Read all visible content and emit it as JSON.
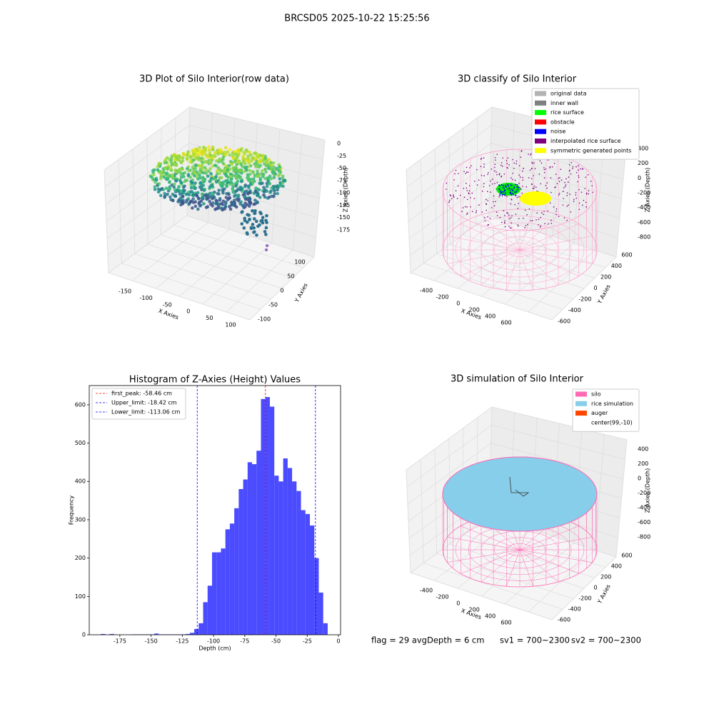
{
  "suptitle": "BRCSD05 2025-10-22 15:25:56",
  "chart_data": [
    {
      "type": "scatter3d",
      "title": "3D Plot of Silo Interior(row data)",
      "xlabel": "X Axies",
      "ylabel": "Y Axies",
      "zlabel": "Z Axies (Depth)",
      "xlim": [
        -190,
        120
      ],
      "ylim": [
        -110,
        120
      ],
      "zlim": [
        -190,
        5
      ],
      "xticks": [
        -150,
        -100,
        -50,
        0,
        50,
        100
      ],
      "yticks": [
        -100,
        -50,
        0,
        50,
        100
      ],
      "zticks": [
        0,
        -25,
        -50,
        -75,
        -100,
        -125,
        -150,
        -175
      ]
    },
    {
      "type": "classify3d",
      "title": "3D classify of Silo Interior",
      "xlabel": "X Axies",
      "ylabel": "Y Axies",
      "zlabel": "Z Axies (Depth)",
      "xlim": [
        -500,
        700
      ],
      "ylim": [
        -700,
        700
      ],
      "zlim": [
        -900,
        450
      ],
      "xticks": [
        -400,
        -200,
        0,
        200,
        400,
        600
      ],
      "yticks": [
        -600,
        -400,
        -200,
        0,
        200,
        400,
        600
      ],
      "zticks": [
        400,
        200,
        0,
        -200,
        -400,
        -600,
        -800
      ],
      "legend": [
        {
          "name": "original data",
          "color": "#b3b3b3"
        },
        {
          "name": "inner wall",
          "color": "#808080"
        },
        {
          "name": "rice surface",
          "color": "#00ff00"
        },
        {
          "name": "obstacle",
          "color": "#ff0000"
        },
        {
          "name": "noise",
          "color": "#0000ff"
        },
        {
          "name": "interpolated rice surface",
          "color": "#800080"
        },
        {
          "name": "symmetric generated points",
          "color": "#ffff00"
        }
      ]
    },
    {
      "type": "histogram",
      "title": "Histogram of Z-Axies (Height) Values",
      "xlabel": "Depth (cm)",
      "ylabel": "Frequency",
      "color": "#4b4bff",
      "bins": [
        -190.2,
        -186.64,
        -183.08,
        -179.52,
        -175.96,
        -172.4,
        -168.84,
        -165.28,
        -161.72,
        -158.16,
        -154.6,
        -151.04,
        -147.48,
        -143.92,
        -140.36,
        -136.8,
        -133.24,
        -129.68,
        -126.12,
        -122.56,
        -119.0,
        -115.44,
        -111.88,
        -108.32,
        -104.76,
        -101.2,
        -97.64,
        -94.08,
        -90.52,
        -86.96,
        -83.4,
        -79.84,
        -76.28,
        -72.72,
        -69.16,
        -65.6,
        -62.04,
        -58.48,
        -54.92,
        -51.36,
        -47.8,
        -44.24,
        -40.68,
        -37.12,
        -33.56,
        -30.0,
        -26.44,
        -22.88,
        -19.32,
        -15.76,
        -12.2,
        -8.64
      ],
      "values": [
        2,
        0,
        2,
        0,
        0,
        0,
        0,
        1,
        1,
        1,
        1,
        1,
        3,
        1,
        1,
        1,
        1,
        1,
        1,
        2,
        5,
        15,
        30,
        85,
        128,
        215,
        215,
        225,
        275,
        290,
        330,
        380,
        405,
        450,
        445,
        480,
        615,
        620,
        595,
        415,
        400,
        460,
        435,
        400,
        375,
        325,
        315,
        285,
        200,
        110,
        30
      ],
      "xlim": [
        -199.5,
        1.7
      ],
      "ylim": [
        0,
        650
      ],
      "xticks": [
        -175,
        -150,
        -125,
        -100,
        -75,
        -50,
        -25,
        0
      ],
      "yticks": [
        0,
        100,
        200,
        300,
        400,
        500,
        600
      ],
      "vlines": [
        {
          "label": "first_peak: -58.46 cm",
          "value": -58.46,
          "color": "#ff0000"
        },
        {
          "label": "Upper_limit: -18.42 cm",
          "value": -18.42,
          "color": "#0000ff"
        },
        {
          "label": "Lower_limit: -113.06 cm",
          "value": -113.06,
          "color": "#0000ff"
        }
      ]
    },
    {
      "type": "simulation3d",
      "title": "3D simulation of Silo Interior",
      "xlabel": "X Axies",
      "ylabel": "Y Axies",
      "zlabel": "Z Axies (Depth)",
      "xlim": [
        -500,
        700
      ],
      "ylim": [
        -700,
        700
      ],
      "zlim": [
        -900,
        450
      ],
      "xticks": [
        -400,
        -200,
        0,
        200,
        400,
        600
      ],
      "yticks": [
        -600,
        -400,
        -200,
        0,
        200,
        400,
        600
      ],
      "zticks": [
        400,
        200,
        0,
        -200,
        -400,
        -600,
        -800
      ],
      "legend": [
        {
          "name": "silo",
          "color": "#ff69b4"
        },
        {
          "name": "rice simulation",
          "color": "#87ceeb"
        },
        {
          "name": "auger",
          "color": "#ff4500"
        },
        {
          "name": "center(99,-10)",
          "color": null
        }
      ]
    }
  ],
  "footer": {
    "flag": "flag = 29  avgDepth = 6 cm",
    "sv1": "sv1 = 700~2300",
    "sv2": "sv2 = 700~2300"
  }
}
